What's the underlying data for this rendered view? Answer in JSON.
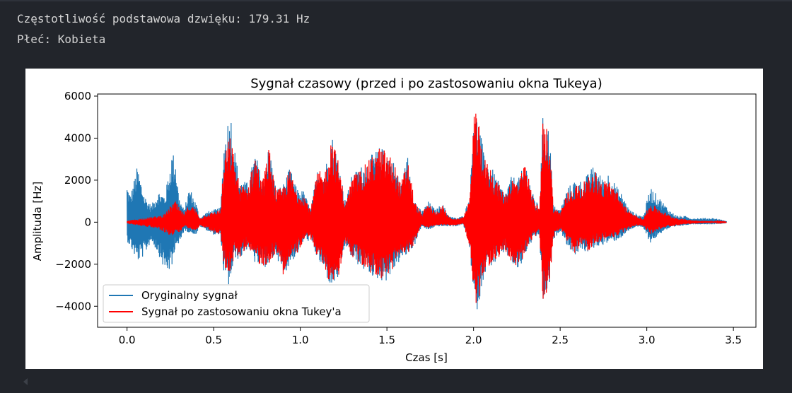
{
  "output": {
    "line1": "Częstotliwość podstawowa dzwięku: 179.31 Hz",
    "line2": "Płeć: Kobieta"
  },
  "chart_data": {
    "type": "line",
    "title": "Sygnał czasowy (przed i po zastosowaniu okna Tukeya)",
    "xlabel": "Czas [s]",
    "ylabel": "Amplituda [Hz]",
    "xlim": [
      -0.17,
      3.63
    ],
    "ylim": [
      -5000,
      6100
    ],
    "xticks": [
      0.0,
      0.5,
      1.0,
      1.5,
      2.0,
      2.5,
      3.0,
      3.5
    ],
    "xtick_labels": [
      "0.0",
      "0.5",
      "1.0",
      "1.5",
      "2.0",
      "2.5",
      "3.0",
      "3.5"
    ],
    "yticks": [
      -4000,
      -2000,
      0,
      2000,
      4000,
      6000
    ],
    "ytick_labels": [
      "−4000",
      "−2000",
      "0",
      "2000",
      "4000",
      "6000"
    ],
    "grid": false,
    "legend_position": "lower-left",
    "series": [
      {
        "name": "Oryginalny sygnał",
        "color": "#1f77b4",
        "envelope": {
          "t": [
            0.0,
            0.02,
            0.06,
            0.1,
            0.14,
            0.18,
            0.22,
            0.26,
            0.28,
            0.3,
            0.33,
            0.36,
            0.4,
            0.42,
            0.46,
            0.5,
            0.54,
            0.56,
            0.58,
            0.6,
            0.62,
            0.65,
            0.7,
            0.74,
            0.78,
            0.82,
            0.86,
            0.9,
            0.94,
            0.98,
            1.02,
            1.06,
            1.1,
            1.14,
            1.18,
            1.22,
            1.26,
            1.3,
            1.34,
            1.38,
            1.42,
            1.46,
            1.5,
            1.54,
            1.58,
            1.62,
            1.66,
            1.7,
            1.74,
            1.78,
            1.82,
            1.86,
            1.9,
            1.94,
            1.98,
            2.0,
            2.02,
            2.04,
            2.06,
            2.1,
            2.14,
            2.18,
            2.22,
            2.26,
            2.3,
            2.34,
            2.38,
            2.4,
            2.42,
            2.44,
            2.46,
            2.5,
            2.54,
            2.58,
            2.62,
            2.66,
            2.7,
            2.74,
            2.78,
            2.82,
            2.86,
            2.9,
            2.94,
            2.98,
            3.02,
            3.06,
            3.1,
            3.14,
            3.18,
            3.22,
            3.26,
            3.3,
            3.34,
            3.38,
            3.42,
            3.46
          ],
          "upper": [
            1800,
            1300,
            2700,
            1300,
            800,
            1500,
            1300,
            3400,
            3100,
            1200,
            600,
            1700,
            900,
            200,
            500,
            600,
            700,
            3900,
            4900,
            5200,
            3600,
            2000,
            1900,
            3400,
            2000,
            3700,
            1600,
            1800,
            2600,
            1600,
            1500,
            600,
            2600,
            2400,
            4300,
            3000,
            1000,
            2300,
            2600,
            2900,
            3300,
            3600,
            3400,
            2900,
            1800,
            3200,
            1100,
            500,
            1000,
            600,
            900,
            300,
            200,
            300,
            1300,
            5600,
            5100,
            4400,
            3200,
            2700,
            2000,
            1400,
            2200,
            2100,
            2900,
            1400,
            700,
            5000,
            4800,
            4400,
            800,
            600,
            1600,
            2000,
            2000,
            2300,
            2800,
            2100,
            2400,
            1800,
            1300,
            600,
            400,
            300,
            1700,
            1300,
            900,
            500,
            300,
            300,
            200,
            200,
            200,
            200,
            150,
            50
          ],
          "lower": [
            -900,
            -1200,
            -1900,
            -1600,
            -900,
            -1500,
            -2400,
            -2300,
            -1000,
            -1200,
            -400,
            -500,
            -600,
            -200,
            -400,
            -600,
            -700,
            -2600,
            -3200,
            -2800,
            -1700,
            -1800,
            -1200,
            -2000,
            -2200,
            -2100,
            -1500,
            -2600,
            -2000,
            -1600,
            -900,
            -900,
            -1800,
            -2400,
            -3200,
            -2700,
            -1100,
            -1800,
            -2100,
            -2400,
            -2600,
            -2800,
            -2800,
            -2300,
            -1800,
            -1600,
            -1100,
            -200,
            -400,
            -200,
            -200,
            -200,
            -200,
            -100,
            -1300,
            -4100,
            -4200,
            -3600,
            -2500,
            -2100,
            -1900,
            -1400,
            -2000,
            -2400,
            -1500,
            -900,
            -600,
            -3900,
            -3500,
            -3000,
            -900,
            -400,
            -1100,
            -1600,
            -1300,
            -1500,
            -1200,
            -1100,
            -1000,
            -900,
            -700,
            -400,
            -200,
            -300,
            -1000,
            -700,
            -400,
            -300,
            -200,
            -150,
            -100,
            -100,
            -100,
            -100,
            -80,
            -50
          ]
        }
      },
      {
        "name": "Sygnał po zastosowaniu okna Tukey'a",
        "color": "#ff0000",
        "envelope": {
          "t": [
            0.0,
            0.02,
            0.06,
            0.1,
            0.14,
            0.18,
            0.22,
            0.26,
            0.28,
            0.3,
            0.33,
            0.36,
            0.4,
            0.42,
            0.46,
            0.5,
            0.54,
            0.56,
            0.58,
            0.6,
            0.62,
            0.65,
            0.7,
            0.74,
            0.78,
            0.82,
            0.86,
            0.9,
            0.94,
            0.98,
            1.02,
            1.06,
            1.1,
            1.14,
            1.18,
            1.22,
            1.26,
            1.3,
            1.34,
            1.38,
            1.42,
            1.46,
            1.5,
            1.54,
            1.58,
            1.62,
            1.66,
            1.7,
            1.74,
            1.78,
            1.82,
            1.86,
            1.9,
            1.94,
            1.98,
            2.0,
            2.02,
            2.04,
            2.06,
            2.1,
            2.14,
            2.18,
            2.22,
            2.26,
            2.3,
            2.34,
            2.38,
            2.4,
            2.42,
            2.44,
            2.46,
            2.5,
            2.54,
            2.58,
            2.62,
            2.66,
            2.7,
            2.74,
            2.78,
            2.82,
            2.86,
            2.9,
            2.94,
            2.98,
            3.02,
            3.06,
            3.1,
            3.14,
            3.18,
            3.22,
            3.26,
            3.3,
            3.34,
            3.38,
            3.42,
            3.46
          ],
          "upper": [
            50,
            100,
            150,
            200,
            250,
            300,
            400,
            900,
            1000,
            700,
            400,
            900,
            600,
            200,
            400,
            500,
            600,
            3000,
            3900,
            4100,
            3000,
            1800,
            1800,
            3300,
            1900,
            3600,
            1500,
            1700,
            2500,
            1500,
            1400,
            600,
            2500,
            2300,
            4200,
            2900,
            900,
            2200,
            2500,
            2800,
            3200,
            3600,
            3400,
            2900,
            1800,
            3100,
            1000,
            400,
            900,
            500,
            800,
            250,
            150,
            250,
            1200,
            5500,
            5000,
            4300,
            3100,
            2600,
            1900,
            1300,
            2100,
            2000,
            2800,
            1300,
            600,
            4800,
            4600,
            4300,
            700,
            500,
            1400,
            1800,
            1800,
            2100,
            2500,
            1900,
            2100,
            1600,
            1000,
            500,
            300,
            200,
            900,
            700,
            500,
            300,
            200,
            150,
            100,
            80,
            60,
            50,
            30,
            10
          ],
          "lower": [
            -50,
            -100,
            -150,
            -200,
            -250,
            -300,
            -500,
            -700,
            -500,
            -600,
            -200,
            -300,
            -400,
            -150,
            -300,
            -500,
            -600,
            -2000,
            -2500,
            -2300,
            -1600,
            -1700,
            -1100,
            -1900,
            -2100,
            -2000,
            -1400,
            -2500,
            -1900,
            -1500,
            -900,
            -800,
            -1700,
            -2300,
            -3100,
            -2600,
            -1000,
            -1700,
            -2000,
            -2300,
            -2500,
            -2700,
            -2700,
            -2200,
            -1700,
            -1500,
            -1000,
            -150,
            -300,
            -150,
            -150,
            -150,
            -150,
            -80,
            -1200,
            -4000,
            -4100,
            -3500,
            -2400,
            -2000,
            -1800,
            -1300,
            -1900,
            -2300,
            -1400,
            -800,
            -500,
            -3800,
            -3400,
            -2900,
            -800,
            -300,
            -1000,
            -1500,
            -1200,
            -1400,
            -1000,
            -900,
            -800,
            -700,
            -500,
            -300,
            -150,
            -200,
            -600,
            -400,
            -250,
            -200,
            -150,
            -100,
            -80,
            -60,
            -40,
            -30,
            -20,
            -10
          ]
        }
      }
    ]
  }
}
